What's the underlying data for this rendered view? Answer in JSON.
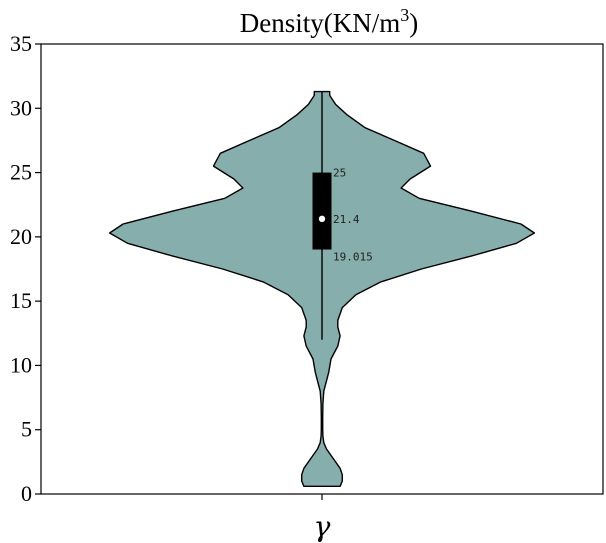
{
  "chart_data": {
    "type": "violin",
    "title": "Density(KN/m",
    "title_superscript": "3",
    "title_suffix": ")",
    "xlabel": "γ",
    "ylabel": "",
    "ylim": [
      0,
      35
    ],
    "yticks": [
      0,
      5,
      10,
      15,
      20,
      25,
      30,
      35
    ],
    "grid": false,
    "fill_color": "#86aeac",
    "box_color": "#000000",
    "median_marker_color": "#ffffff",
    "violin": {
      "min": 0.6,
      "max": 31.3,
      "q1": 19.015,
      "median": 21.4,
      "q3": 25,
      "whisker_low": 12.0,
      "whisker_high": 31.3,
      "density_profile": [
        [
          0.6,
          0.08
        ],
        [
          1.0,
          0.09
        ],
        [
          1.5,
          0.09
        ],
        [
          2.0,
          0.08
        ],
        [
          2.5,
          0.06
        ],
        [
          3.0,
          0.04
        ],
        [
          3.5,
          0.02
        ],
        [
          4.0,
          0.008
        ],
        [
          4.5,
          0.004
        ],
        [
          5.0,
          0.003
        ],
        [
          6.0,
          0.003
        ],
        [
          7.0,
          0.004
        ],
        [
          8.0,
          0.008
        ],
        [
          8.8,
          0.02
        ],
        [
          9.5,
          0.03
        ],
        [
          10.5,
          0.04
        ],
        [
          11.5,
          0.07
        ],
        [
          12.3,
          0.08
        ],
        [
          13.0,
          0.07
        ],
        [
          13.5,
          0.07
        ],
        [
          14.5,
          0.09
        ],
        [
          15.5,
          0.15
        ],
        [
          16.5,
          0.26
        ],
        [
          17.5,
          0.44
        ],
        [
          18.5,
          0.66
        ],
        [
          19.5,
          0.86
        ],
        [
          20.3,
          0.94
        ],
        [
          21.0,
          0.88
        ],
        [
          22.0,
          0.66
        ],
        [
          23.0,
          0.43
        ],
        [
          23.8,
          0.35
        ],
        [
          24.5,
          0.39
        ],
        [
          25.5,
          0.48
        ],
        [
          26.5,
          0.45
        ],
        [
          27.5,
          0.32
        ],
        [
          28.5,
          0.19
        ],
        [
          29.5,
          0.11
        ],
        [
          30.3,
          0.06
        ],
        [
          31.0,
          0.034
        ],
        [
          31.3,
          0.034
        ]
      ]
    },
    "annotations": [
      {
        "label": "25",
        "value": 25
      },
      {
        "label": "21.4",
        "value": 21.4
      },
      {
        "label": "19.015",
        "value": 19.015
      }
    ]
  }
}
